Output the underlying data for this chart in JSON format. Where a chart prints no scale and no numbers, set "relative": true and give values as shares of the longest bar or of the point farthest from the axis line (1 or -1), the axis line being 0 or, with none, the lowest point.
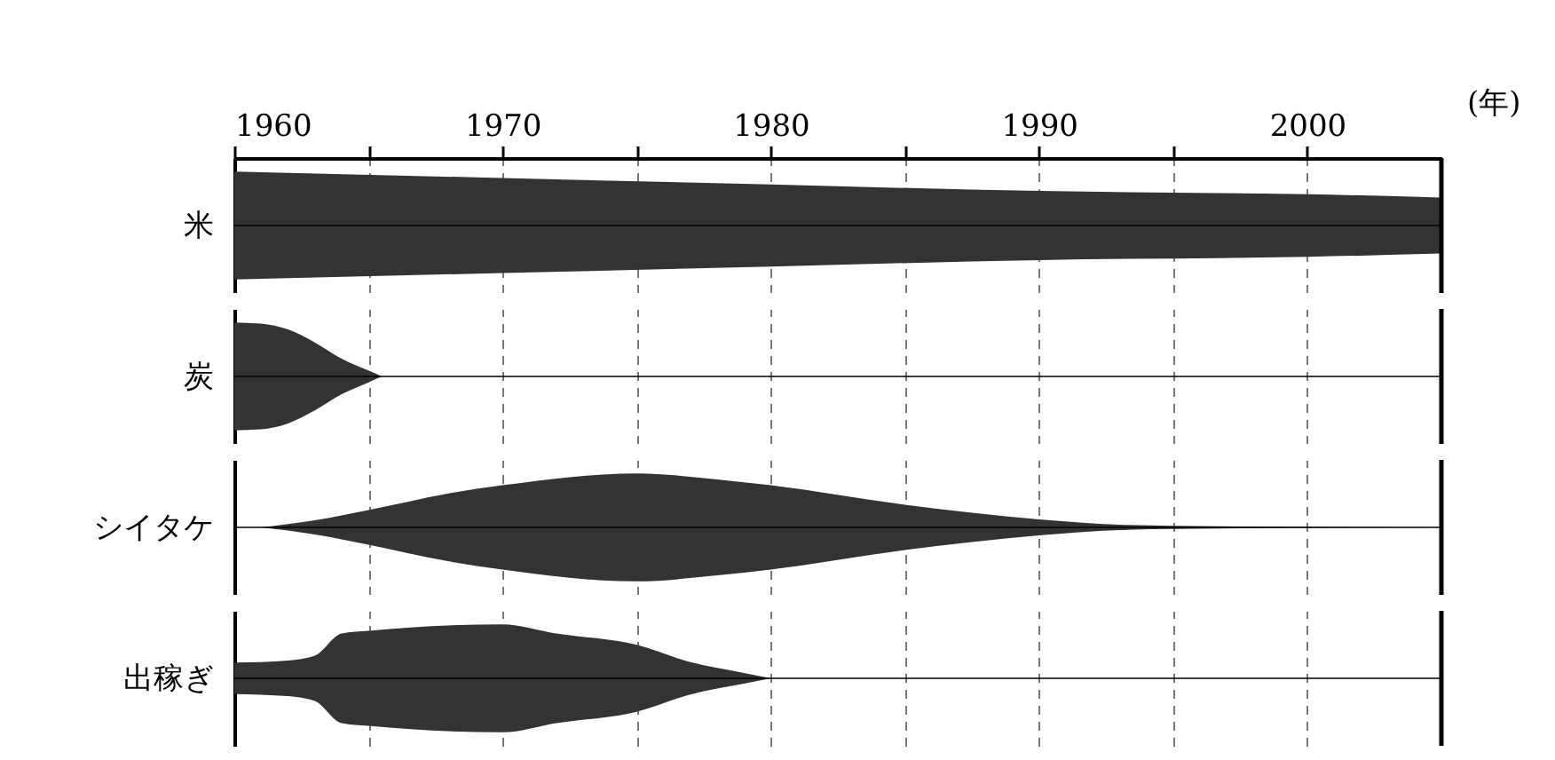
{
  "chart_data": [
    {
      "type": "area",
      "relative": true,
      "ylabel": "米",
      "xlabel": "(年)",
      "xlim": [
        1960,
        2005
      ],
      "xticks": [
        1960,
        {
          "value": 1965,
          "label": null
        },
        1970,
        {
          "value": 1975,
          "label": null
        },
        1980,
        {
          "value": 1985,
          "label": null
        },
        1990,
        {
          "value": 1995,
          "label": null
        },
        2000
      ],
      "grid": "x",
      "tick_labels": "x",
      "color": "#333333",
      "x": [
        1960,
        1970,
        1980,
        1990,
        2000,
        2005
      ],
      "values": [
        1,
        0.88,
        0.76,
        0.64,
        0.58,
        0.52
      ]
    },
    {
      "type": "area",
      "relative": true,
      "ylabel": "炭",
      "xlim": [
        1960,
        2005
      ],
      "xticks": [
        1960,
        {
          "value": 1965,
          "label": null
        },
        1970,
        {
          "value": 1975,
          "label": null
        },
        1980,
        {
          "value": 1985,
          "label": null
        },
        1990,
        {
          "value": 1995,
          "label": null
        },
        2000
      ],
      "grid": "x",
      "tick_labels": false,
      "color": "#333333",
      "x": [
        1960,
        1961,
        1962,
        1963,
        1964,
        1965,
        1965.5
      ],
      "values": [
        1,
        0.98,
        0.87,
        0.63,
        0.33,
        0.11,
        0
      ]
    },
    {
      "type": "area",
      "relative": true,
      "ylabel": "シイタケ",
      "xlim": [
        1960,
        2005
      ],
      "xticks": [
        1960,
        {
          "value": 1965,
          "label": null
        },
        1970,
        {
          "value": 1975,
          "label": null
        },
        1980,
        {
          "value": 1985,
          "label": null
        },
        1990,
        {
          "value": 1995,
          "label": null
        },
        2000
      ],
      "grid": "x",
      "tick_labels": false,
      "color": "#333333",
      "x": [
        1961,
        1963,
        1965,
        1968,
        1970,
        1975,
        1978,
        1980,
        1985,
        1990,
        1993,
        1995,
        2005
      ],
      "values": [
        0,
        0.13,
        0.32,
        0.63,
        0.78,
        1,
        0.89,
        0.78,
        0.42,
        0.15,
        0.05,
        0.03,
        0
      ]
    },
    {
      "type": "area",
      "relative": true,
      "ylabel": "出稼ぎ",
      "xlim": [
        1960,
        2005
      ],
      "xticks": [
        1960,
        {
          "value": 1965,
          "label": null
        },
        1970,
        {
          "value": 1975,
          "label": null
        },
        1980,
        {
          "value": 1985,
          "label": null
        },
        1990,
        {
          "value": 1995,
          "label": null
        },
        2000
      ],
      "grid": "x",
      "tick_labels": false,
      "color": "#333333",
      "x": [
        1960,
        1962,
        1963,
        1964,
        1965,
        1970,
        1972,
        1975,
        1977,
        1979,
        1980
      ],
      "values": [
        0.29,
        0.33,
        0.42,
        0.83,
        0.88,
        1,
        0.83,
        0.62,
        0.3,
        0.1,
        0
      ]
    }
  ]
}
